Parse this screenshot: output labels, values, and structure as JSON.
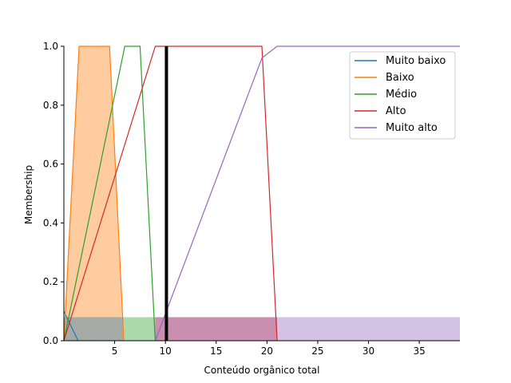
{
  "chart_data": {
    "type": "line",
    "title": "",
    "xlabel": "Conteúdo orgânico total",
    "ylabel": "Membership",
    "xlim": [
      0,
      39
    ],
    "ylim": [
      0,
      1.0
    ],
    "xticks": [
      5,
      10,
      15,
      20,
      25,
      30,
      35
    ],
    "yticks": [
      0.0,
      0.2,
      0.4,
      0.6,
      0.8,
      1.0
    ],
    "legend_position": "top-right",
    "series": [
      {
        "name": "Muito baixo",
        "color": "#1f77b4",
        "x": [
          0,
          1.4
        ],
        "y": [
          0.1,
          0.0
        ]
      },
      {
        "name": "Baixo",
        "color": "#ff7f0e",
        "x": [
          0,
          1.5,
          4.5,
          5.9
        ],
        "y": [
          0.0,
          1.0,
          1.0,
          0.0
        ]
      },
      {
        "name": "Médio",
        "color": "#2ca02c",
        "x": [
          0,
          6.0,
          7.5,
          9.0
        ],
        "y": [
          0.0,
          1.0,
          1.0,
          0.0
        ]
      },
      {
        "name": "Alto",
        "color": "#d62728",
        "x": [
          0,
          9.0,
          19.5,
          21.0
        ],
        "y": [
          0.0,
          1.0,
          1.0,
          0.0
        ]
      },
      {
        "name": "Muito alto",
        "color": "#9467bd",
        "x": [
          9.0,
          19.5,
          21.0,
          39.0
        ],
        "y": [
          0.0,
          0.96,
          1.0,
          1.0
        ]
      }
    ],
    "filled_regions": [
      {
        "name": "Baixo",
        "color": "#ff7f0e",
        "x": [
          0,
          1.5,
          4.5,
          5.9
        ],
        "y": [
          0.0,
          1.0,
          1.0,
          0.0
        ]
      },
      {
        "name": "Muito baixo",
        "color": "#1f77b4",
        "x": [
          0,
          5.9
        ],
        "y": [
          0.08,
          0.08
        ]
      },
      {
        "name": "Médio",
        "color": "#2ca02c",
        "x": [
          5.9,
          9.0
        ],
        "y": [
          0.08,
          0.08
        ]
      },
      {
        "name": "Alto",
        "color": "#d62728",
        "x": [
          9.0,
          21.0
        ],
        "y": [
          0.08,
          0.08
        ]
      },
      {
        "name": "Muito alto",
        "color": "#9467bd",
        "x": [
          9.0,
          39.0
        ],
        "y": [
          0.08,
          0.08
        ]
      }
    ],
    "vertical_marker": {
      "x": 10.1,
      "color": "#000000"
    }
  }
}
